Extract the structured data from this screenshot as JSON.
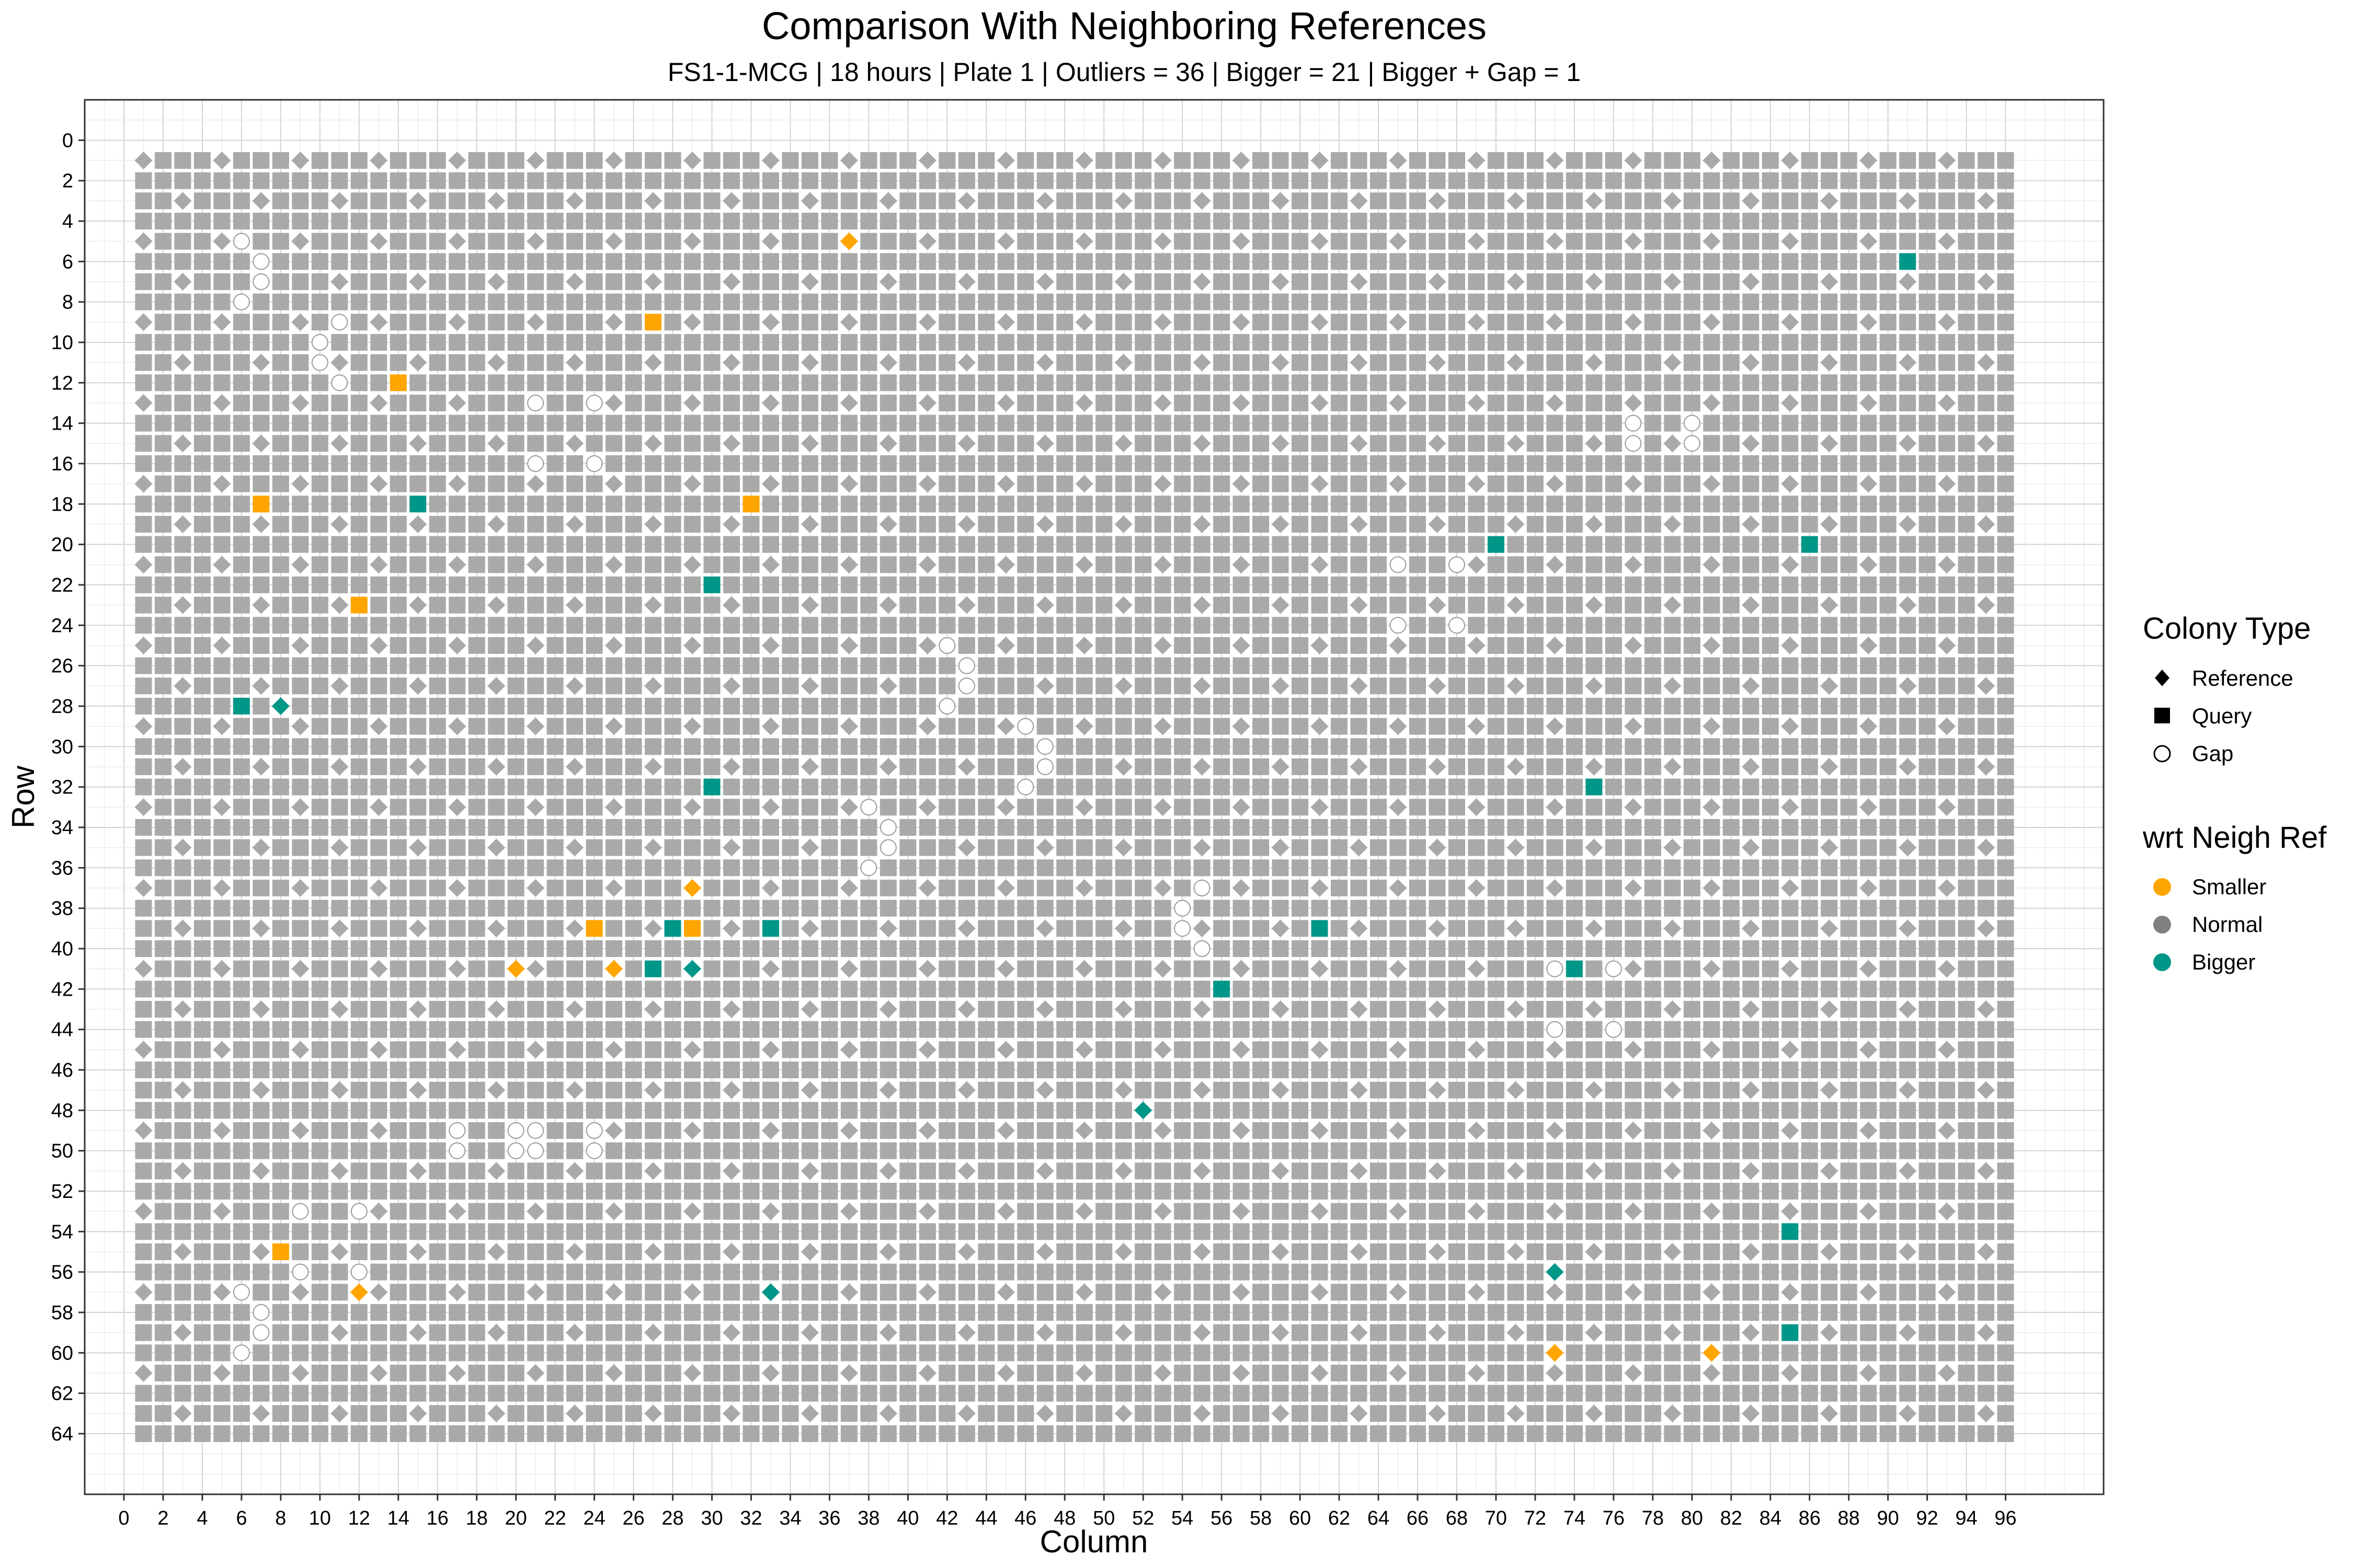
{
  "chart_data": {
    "type": "scatter",
    "title": "Comparison With Neighboring References",
    "subtitle": "FS1-1-MCG | 18 hours | Plate 1 | Outliers = 36 | Bigger = 21 | Bigger + Gap = 1",
    "xlabel": "Column",
    "ylabel": "Row",
    "xlim": [
      -2,
      101
    ],
    "ylim": [
      -2,
      67
    ],
    "y_reversed": true,
    "x_ticks": [
      0,
      2,
      4,
      6,
      8,
      10,
      12,
      14,
      16,
      18,
      20,
      22,
      24,
      26,
      28,
      30,
      32,
      34,
      36,
      38,
      40,
      42,
      44,
      46,
      48,
      50,
      52,
      54,
      56,
      58,
      60,
      62,
      64,
      66,
      68,
      70,
      72,
      74,
      76,
      78,
      80,
      82,
      84,
      86,
      88,
      90,
      92,
      94,
      96
    ],
    "y_ticks": [
      0,
      2,
      4,
      6,
      8,
      10,
      12,
      14,
      16,
      18,
      20,
      22,
      24,
      26,
      28,
      30,
      32,
      34,
      36,
      38,
      40,
      42,
      44,
      46,
      48,
      50,
      52,
      54,
      56,
      58,
      60,
      62,
      64
    ],
    "grid": true,
    "plate": {
      "columns": [
        1,
        96
      ],
      "rows": [
        1,
        64
      ],
      "reference_rule": "Reference colonies at odd rows and columns where (row mod 4) equals (column mod 4); all other positions are Query colonies",
      "default_category": "Normal"
    },
    "series": [
      {
        "name": "Gap",
        "marker": "Gap",
        "color_group": "Normal",
        "points": [
          [
            6,
            5
          ],
          [
            7,
            6
          ],
          [
            7,
            7
          ],
          [
            6,
            8
          ],
          [
            11,
            9
          ],
          [
            10,
            10
          ],
          [
            10,
            11
          ],
          [
            11,
            12
          ],
          [
            21,
            13
          ],
          [
            24,
            13
          ],
          [
            21,
            16
          ],
          [
            24,
            16
          ],
          [
            77,
            14
          ],
          [
            77,
            15
          ],
          [
            80,
            14
          ],
          [
            80,
            15
          ],
          [
            65,
            21
          ],
          [
            68,
            21
          ],
          [
            65,
            24
          ],
          [
            68,
            24
          ],
          [
            42,
            25
          ],
          [
            43,
            26
          ],
          [
            43,
            27
          ],
          [
            42,
            28
          ],
          [
            46,
            29
          ],
          [
            47,
            30
          ],
          [
            47,
            31
          ],
          [
            46,
            32
          ],
          [
            38,
            33
          ],
          [
            39,
            34
          ],
          [
            39,
            35
          ],
          [
            38,
            36
          ],
          [
            55,
            37
          ],
          [
            54,
            38
          ],
          [
            54,
            39
          ],
          [
            55,
            40
          ],
          [
            73,
            41
          ],
          [
            76,
            41
          ],
          [
            73,
            44
          ],
          [
            76,
            44
          ],
          [
            17,
            49
          ],
          [
            17,
            50
          ],
          [
            20,
            49
          ],
          [
            21,
            49
          ],
          [
            20,
            50
          ],
          [
            21,
            50
          ],
          [
            24,
            49
          ],
          [
            24,
            50
          ],
          [
            9,
            53
          ],
          [
            12,
            53
          ],
          [
            9,
            56
          ],
          [
            12,
            56
          ],
          [
            6,
            57
          ],
          [
            7,
            58
          ],
          [
            7,
            59
          ],
          [
            6,
            60
          ]
        ]
      },
      {
        "name": "Smaller",
        "marker": "Query",
        "color_group": "Smaller",
        "points": [
          [
            27,
            9
          ],
          [
            14,
            12
          ],
          [
            7,
            18
          ],
          [
            32,
            18
          ],
          [
            12,
            23
          ],
          [
            24,
            39
          ],
          [
            29,
            39
          ],
          [
            8,
            55
          ]
        ]
      },
      {
        "name": "Smaller",
        "marker": "Reference",
        "color_group": "Smaller",
        "points": [
          [
            37,
            5
          ],
          [
            29,
            37
          ],
          [
            20,
            41
          ],
          [
            25,
            41
          ],
          [
            12,
            57
          ],
          [
            73,
            60
          ],
          [
            81,
            60
          ]
        ]
      },
      {
        "name": "Bigger",
        "marker": "Query",
        "color_group": "Bigger",
        "points": [
          [
            91,
            6
          ],
          [
            15,
            18
          ],
          [
            70,
            20
          ],
          [
            86,
            20
          ],
          [
            30,
            22
          ],
          [
            6,
            28
          ],
          [
            30,
            32
          ],
          [
            75,
            32
          ],
          [
            28,
            39
          ],
          [
            33,
            39
          ],
          [
            61,
            39
          ],
          [
            27,
            41
          ],
          [
            74,
            41
          ],
          [
            56,
            42
          ],
          [
            85,
            54
          ],
          [
            85,
            59
          ]
        ]
      },
      {
        "name": "Bigger",
        "marker": "Reference",
        "color_group": "Bigger",
        "points": [
          [
            8,
            28
          ],
          [
            29,
            41
          ],
          [
            52,
            48
          ],
          [
            73,
            56
          ],
          [
            33,
            57
          ]
        ]
      }
    ],
    "legend": {
      "placement": "right",
      "groups": [
        {
          "title": "Colony Type",
          "items": [
            {
              "label": "Reference",
              "shape": "diamond"
            },
            {
              "label": "Query",
              "shape": "square"
            },
            {
              "label": "Gap",
              "shape": "circle-open"
            }
          ]
        },
        {
          "title": "wrt Neigh Ref",
          "items": [
            {
              "label": "Smaller",
              "color": "#FFA500"
            },
            {
              "label": "Normal",
              "color": "#808080"
            },
            {
              "label": "Bigger",
              "color": "#009688"
            }
          ]
        }
      ]
    }
  },
  "colors": {
    "smaller": "#FFA500",
    "normal": "#A9A9A9",
    "bigger": "#009688",
    "legend_normal": "#808080",
    "panel_border": "#333333",
    "grid_major": "#d3d3d3",
    "grid_minor": "#ececec"
  }
}
